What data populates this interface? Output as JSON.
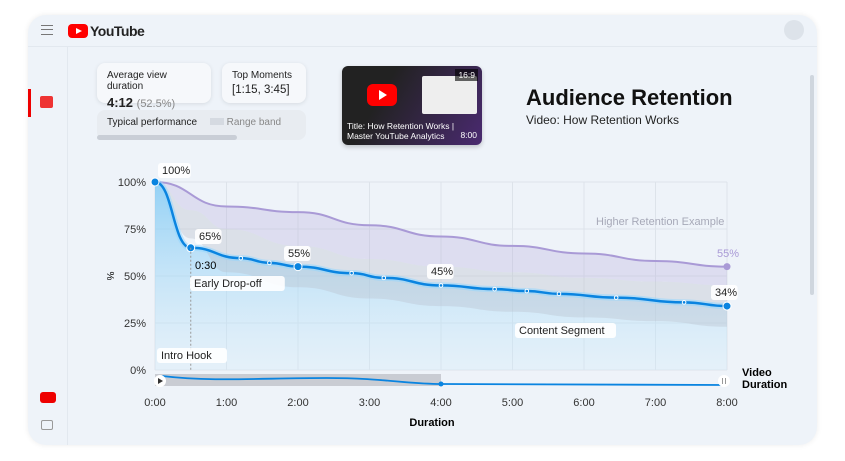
{
  "header": {
    "brand": "YouTube"
  },
  "stats": {
    "avg_label": "Average view duration",
    "avg_value": "4:12",
    "avg_pct": "(52.5%)",
    "top_label": "Top Moments",
    "top_value": "[1:15, 3:45]",
    "typical_label": "Typical performance",
    "range_label": "Range band"
  },
  "video": {
    "aspect": "16:9",
    "duration": "8:00",
    "title_line1": "Title: How Retention Works |",
    "title_line2": "Master YouTube Analytics"
  },
  "page": {
    "title": "Audience Retention",
    "subtitle": "Video: How Retention Works"
  },
  "chart_data": {
    "type": "line",
    "xlabel": "Duration",
    "ylabel": "%",
    "x_ticks": [
      "0:00",
      "1:00",
      "2:00",
      "3:00",
      "4:00",
      "5:00",
      "6:00",
      "7:00",
      "8:00"
    ],
    "y_ticks": [
      "0%",
      "25%",
      "50%",
      "75%",
      "100%"
    ],
    "xlim": [
      0,
      8
    ],
    "ylim": [
      0,
      100
    ],
    "grid": true,
    "series": [
      {
        "name": "",
        "color": "#0a84e0",
        "x": [
          0,
          0.5,
          1.2,
          1.6,
          2,
          2.75,
          3.2,
          4,
          4.75,
          5.2,
          5.65,
          6.45,
          7.4,
          8
        ],
        "y": [
          100,
          65,
          59.5,
          57,
          55,
          51.5,
          49,
          45,
          43,
          42,
          40.5,
          38.5,
          36,
          34
        ]
      },
      {
        "name": "Higher Retention Example",
        "color": "#a99ad6",
        "x": [
          0,
          1,
          2,
          3,
          4,
          5,
          6,
          7,
          8
        ],
        "y": [
          100,
          87,
          84,
          77,
          71,
          66,
          62,
          58,
          55
        ]
      }
    ],
    "range_band": {
      "x": [
        0,
        0.5,
        1,
        2,
        3,
        4,
        5,
        6,
        7,
        8
      ],
      "upper": [
        100,
        85,
        75,
        66,
        59,
        55,
        52,
        49,
        47,
        45
      ],
      "lower": [
        100,
        70,
        52,
        44,
        38,
        34,
        31,
        28,
        26,
        23
      ]
    },
    "point_labels": [
      {
        "x": 0,
        "y": 100,
        "text": "100%"
      },
      {
        "x": 0.5,
        "y": 65,
        "text": "65%"
      },
      {
        "x": 2,
        "y": 55,
        "text": "55%"
      },
      {
        "x": 4,
        "y": 45,
        "text": "45%"
      },
      {
        "x": 8,
        "y": 34,
        "text": "34%"
      },
      {
        "x": 8,
        "y": 55,
        "text": "55%"
      }
    ],
    "annotations": {
      "t030": "0:30",
      "early": "Early Drop-off",
      "intro": "Intro Hook",
      "content": "Content Segment",
      "higher": "Higher Retention Example",
      "video_duration_1": "Video",
      "video_duration_2": "Duration"
    },
    "scrubber_position": "4:00"
  }
}
